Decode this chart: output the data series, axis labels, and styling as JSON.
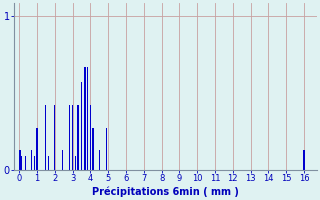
{
  "title": "",
  "xlabel": "Précipitations 6min ( mm )",
  "ylabel": "",
  "background_color": "#dff2f2",
  "bar_color": "#0000cc",
  "grid_color_v": "#c8a0a0",
  "grid_color_h": "#c8a0a0",
  "axis_color": "#8090a0",
  "text_color": "#0000bb",
  "xlim": [
    -0.3,
    16.7
  ],
  "ylim": [
    0,
    1.08
  ],
  "yticks": [
    0,
    1
  ],
  "xticks": [
    0,
    1,
    2,
    3,
    4,
    5,
    6,
    7,
    8,
    9,
    10,
    11,
    12,
    13,
    14,
    15,
    16
  ],
  "bar_positions": [
    0.05,
    0.15,
    0.35,
    0.7,
    0.85,
    1.0,
    1.5,
    1.65,
    2.0,
    2.45,
    2.85,
    3.0,
    3.15,
    3.3,
    3.5,
    3.7,
    3.85,
    4.0,
    4.15,
    4.5,
    4.9,
    16.0
  ],
  "bar_heights": [
    0.13,
    0.09,
    0.09,
    0.13,
    0.09,
    0.27,
    0.42,
    0.09,
    0.42,
    0.13,
    0.42,
    0.42,
    0.09,
    0.42,
    0.57,
    0.67,
    0.67,
    0.42,
    0.27,
    0.13,
    0.27,
    0.13
  ],
  "bar_width": 0.07,
  "dpi": 100,
  "figsize": [
    3.2,
    2.0
  ]
}
